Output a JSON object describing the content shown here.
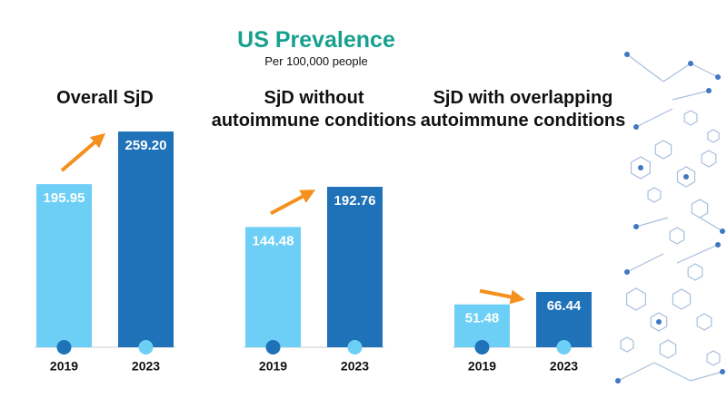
{
  "header": {
    "title": "US Prevalence",
    "subtitle": "Per 100,000 people"
  },
  "chart_data": [
    {
      "type": "bar",
      "title": "Overall SjD",
      "categories": [
        "2019",
        "2023"
      ],
      "values": [
        195.95,
        259.2
      ],
      "value_labels": [
        "195.95",
        "259.20"
      ],
      "colors": [
        "#6dcff6",
        "#1f71b8"
      ]
    },
    {
      "type": "bar",
      "title": "SjD without autoimmune conditions",
      "categories": [
        "2019",
        "2023"
      ],
      "values": [
        144.48,
        192.76
      ],
      "value_labels": [
        "144.48",
        "192.76"
      ],
      "colors": [
        "#6dcff6",
        "#1f71b8"
      ]
    },
    {
      "type": "bar",
      "title": "SjD with overlapping autoimmune conditions",
      "categories": [
        "2019",
        "2023"
      ],
      "values": [
        51.48,
        66.44
      ],
      "value_labels": [
        "51.48",
        "66.44"
      ],
      "colors": [
        "#6dcff6",
        "#1f71b8"
      ]
    }
  ]
}
